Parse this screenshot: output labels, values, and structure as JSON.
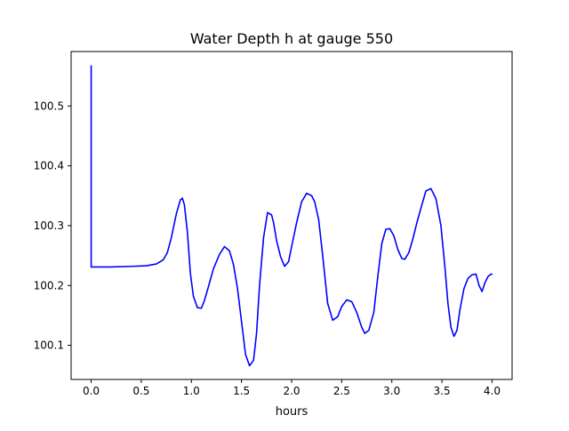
{
  "chart_data": {
    "type": "line",
    "title": "Water Depth h at gauge 550",
    "xlabel": "hours",
    "ylabel": "",
    "xlim": [
      -0.2,
      4.2
    ],
    "ylim": [
      100.043,
      100.591
    ],
    "xticks": [
      0.0,
      0.5,
      1.0,
      1.5,
      2.0,
      2.5,
      3.0,
      3.5,
      4.0
    ],
    "xtick_labels": [
      "0.0",
      "0.5",
      "1.0",
      "1.5",
      "2.0",
      "2.5",
      "3.0",
      "3.5",
      "4.0"
    ],
    "yticks": [
      100.1,
      100.2,
      100.3,
      100.4,
      100.5
    ],
    "ytick_labels": [
      "100.1",
      "100.2",
      "100.3",
      "100.4",
      "100.5"
    ],
    "grid": false,
    "legend": null,
    "series": [
      {
        "color": "#0000ff",
        "x": [
          0.0,
          0.0,
          0.0,
          0.2,
          0.4,
          0.55,
          0.65,
          0.72,
          0.76,
          0.8,
          0.85,
          0.89,
          0.91,
          0.93,
          0.96,
          0.99,
          1.02,
          1.06,
          1.1,
          1.13,
          1.17,
          1.22,
          1.28,
          1.33,
          1.38,
          1.42,
          1.46,
          1.5,
          1.54,
          1.58,
          1.62,
          1.65,
          1.68,
          1.72,
          1.76,
          1.8,
          1.82,
          1.85,
          1.89,
          1.93,
          1.97,
          2.0,
          2.05,
          2.1,
          2.15,
          2.2,
          2.23,
          2.27,
          2.31,
          2.36,
          2.41,
          2.46,
          2.5,
          2.55,
          2.6,
          2.65,
          2.7,
          2.73,
          2.77,
          2.82,
          2.86,
          2.9,
          2.94,
          2.98,
          3.02,
          3.06,
          3.1,
          3.13,
          3.17,
          3.21,
          3.25,
          3.3,
          3.34,
          3.39,
          3.44,
          3.49,
          3.53,
          3.56,
          3.59,
          3.62,
          3.65,
          3.68,
          3.72,
          3.76,
          3.8,
          3.84,
          3.87,
          3.9,
          3.93,
          3.96,
          3.99,
          4.0
        ],
        "y": [
          100.567,
          100.4,
          100.231,
          100.231,
          100.232,
          100.233,
          100.236,
          100.243,
          100.255,
          100.28,
          100.32,
          100.343,
          100.346,
          100.335,
          100.29,
          100.22,
          100.182,
          100.163,
          100.162,
          100.175,
          100.198,
          100.228,
          100.252,
          100.265,
          100.258,
          100.235,
          100.195,
          100.14,
          100.085,
          100.066,
          100.075,
          100.12,
          100.2,
          100.28,
          100.322,
          100.318,
          100.305,
          100.275,
          100.248,
          100.232,
          100.24,
          100.265,
          100.305,
          100.34,
          100.354,
          100.35,
          100.34,
          100.31,
          100.25,
          100.17,
          100.142,
          100.148,
          100.165,
          100.176,
          100.173,
          100.155,
          100.13,
          100.12,
          100.125,
          100.155,
          100.215,
          100.27,
          100.294,
          100.295,
          100.283,
          100.26,
          100.245,
          100.244,
          100.255,
          100.278,
          100.305,
          100.335,
          100.358,
          100.362,
          100.345,
          100.3,
          100.23,
          100.17,
          100.13,
          100.115,
          100.125,
          100.16,
          100.195,
          100.212,
          100.218,
          100.219,
          100.2,
          100.19,
          100.205,
          100.215,
          100.219,
          100.219
        ]
      }
    ]
  }
}
